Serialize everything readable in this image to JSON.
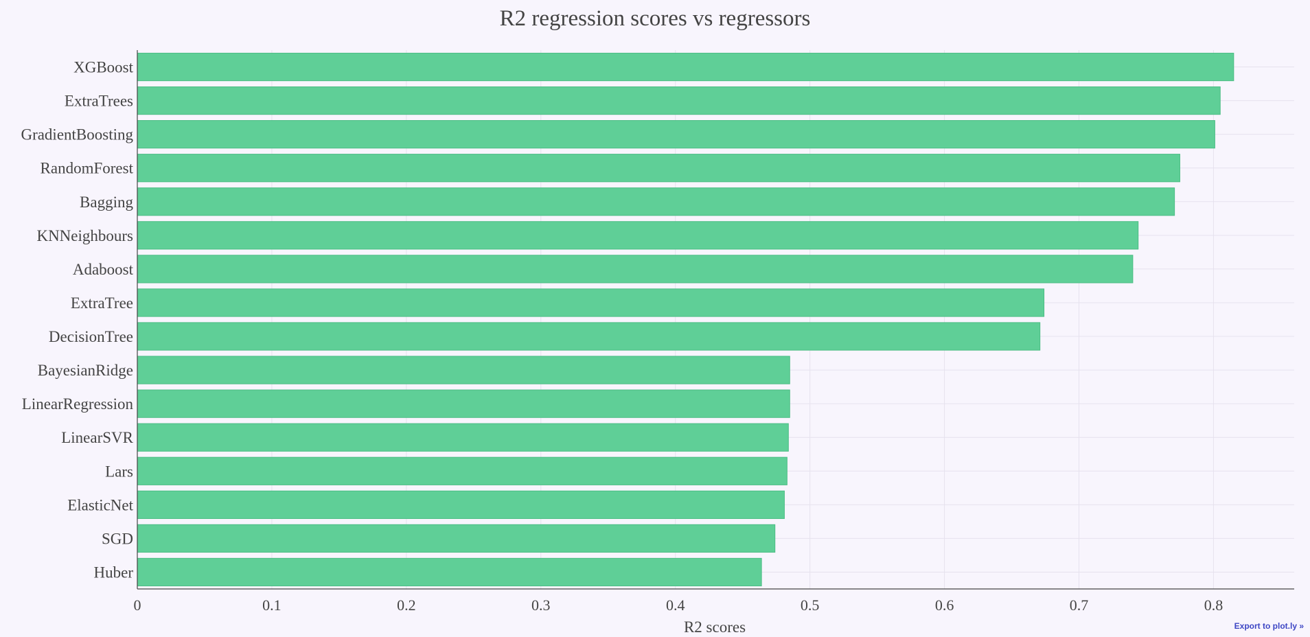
{
  "export_link_label": "Export to plot.ly »",
  "chart_data": {
    "type": "bar",
    "orientation": "horizontal",
    "title": "R2 regression scores vs regressors",
    "xlabel": "R2 scores",
    "ylabel": "",
    "xlim": [
      0,
      0.86
    ],
    "xticks": [
      0,
      0.1,
      0.2,
      0.3,
      0.4,
      0.5,
      0.6,
      0.7,
      0.8
    ],
    "grid": true,
    "legend": "none",
    "colors": {
      "background": "#f8f5fd",
      "bar_fill": "#5fcf97",
      "bar_stroke": "#4bbd84",
      "grid": "#e6e2ee",
      "axis": "#444444",
      "text": "#444444",
      "export_link": "#3d46c4"
    },
    "categories": [
      "XGBoost",
      "ExtraTrees",
      "GradientBoosting",
      "RandomForest",
      "Bagging",
      "KNNeighbours",
      "Adaboost",
      "ExtraTree",
      "DecisionTree",
      "BayesianRidge",
      "LinearRegression",
      "LinearSVR",
      "Lars",
      "ElasticNet",
      "SGD",
      "Huber"
    ],
    "values": [
      0.815,
      0.805,
      0.801,
      0.775,
      0.771,
      0.744,
      0.74,
      0.674,
      0.671,
      0.485,
      0.485,
      0.484,
      0.483,
      0.481,
      0.474,
      0.464
    ]
  }
}
